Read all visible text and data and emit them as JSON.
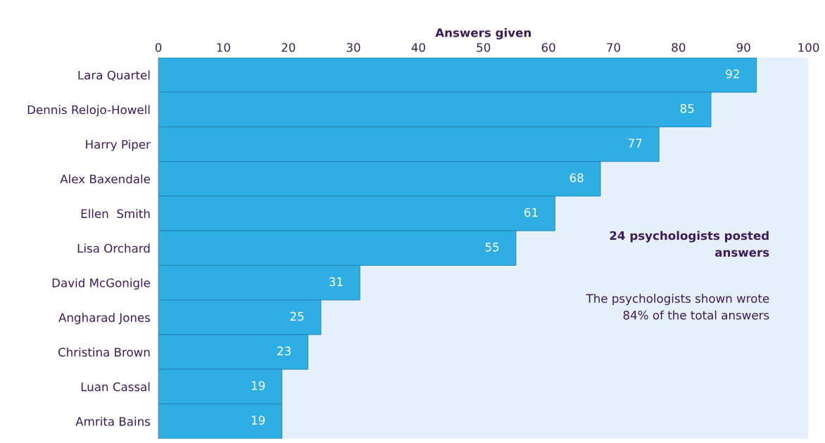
{
  "chart_data": {
    "type": "bar",
    "orientation": "horizontal",
    "xlabel": "Answers given",
    "categories": [
      "Lara Quartel",
      "Dennis Relojo-Howell",
      "Harry Piper",
      "Alex Baxendale",
      "Ellen  Smith",
      "Lisa Orchard",
      "David McGonigle",
      "Angharad Jones",
      "Christina Brown",
      "Luan Cassal",
      "Amrita Bains"
    ],
    "values": [
      92,
      85,
      77,
      68,
      61,
      55,
      31,
      25,
      23,
      19,
      19
    ],
    "color": "#2eaee3",
    "xlim": [
      0,
      100
    ],
    "xticks": [
      0,
      10,
      20,
      30,
      40,
      50,
      60,
      70,
      80,
      90,
      100
    ],
    "data_labels": true,
    "annotations": [
      "24 psychologists posted\nanswers",
      "The psychologists shown wrote\n84% of the total answers"
    ]
  }
}
